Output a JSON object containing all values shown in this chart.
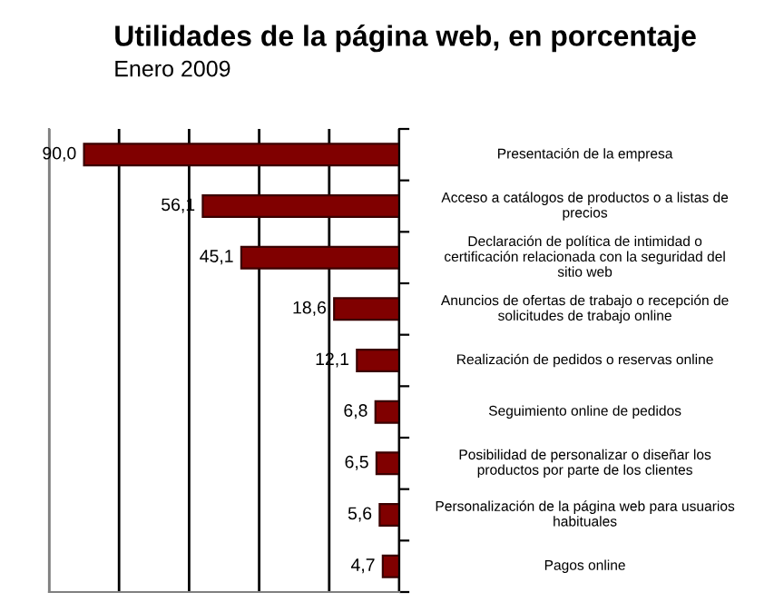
{
  "chart_data": {
    "type": "bar",
    "orientation": "horizontal",
    "title": "Utilidades de la página web, en porcentaje",
    "subtitle": "Enero 2009",
    "categories": [
      "Presentación de la empresa",
      "Acceso a catálogos de productos o a listas de\nprecios",
      "Declaración de política de intimidad o\ncertificación relacionada con la seguridad del\nsitio web",
      "Anuncios de ofertas de trabajo o recepción de\nsolicitudes de trabajo online",
      "Realización de pedidos o reservas online",
      "Seguimiento online de pedidos",
      "Posibilidad de personalizar o diseñar los\nproductos por parte de los clientes",
      "Personalización de la página web para usuarios\nhabituales",
      "Pagos online"
    ],
    "values": [
      90.0,
      56.1,
      45.1,
      18.6,
      12.1,
      6.8,
      6.5,
      5.6,
      4.7
    ],
    "value_labels": [
      "90,0",
      "56,1",
      "45,1",
      "18,6",
      "12,1",
      "6,8",
      "6,5",
      "5,6",
      "4,7"
    ],
    "color": "#800000",
    "xlim": [
      100,
      0
    ],
    "xticks": [
      {
        "value": 100,
        "label": null
      },
      {
        "value": 80,
        "label": null
      },
      {
        "value": 60,
        "label": null
      },
      {
        "value": 40,
        "label": null
      },
      {
        "value": 20,
        "label": null
      },
      {
        "value": 0,
        "label": null
      }
    ],
    "grid": "x"
  }
}
